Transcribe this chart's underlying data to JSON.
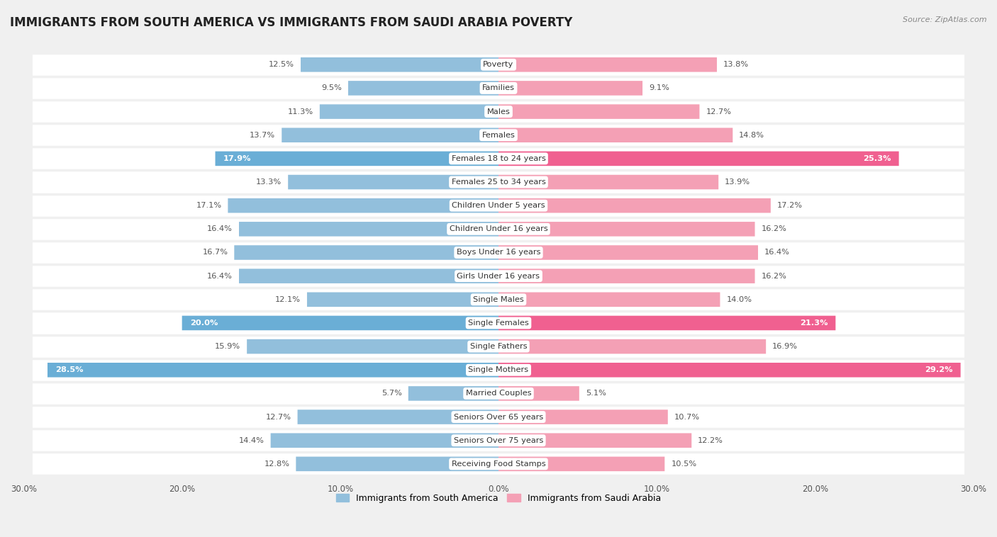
{
  "title": "IMMIGRANTS FROM SOUTH AMERICA VS IMMIGRANTS FROM SAUDI ARABIA POVERTY",
  "source": "Source: ZipAtlas.com",
  "categories": [
    "Poverty",
    "Families",
    "Males",
    "Females",
    "Females 18 to 24 years",
    "Females 25 to 34 years",
    "Children Under 5 years",
    "Children Under 16 years",
    "Boys Under 16 years",
    "Girls Under 16 years",
    "Single Males",
    "Single Females",
    "Single Fathers",
    "Single Mothers",
    "Married Couples",
    "Seniors Over 65 years",
    "Seniors Over 75 years",
    "Receiving Food Stamps"
  ],
  "south_america": [
    12.5,
    9.5,
    11.3,
    13.7,
    17.9,
    13.3,
    17.1,
    16.4,
    16.7,
    16.4,
    12.1,
    20.0,
    15.9,
    28.5,
    5.7,
    12.7,
    14.4,
    12.8
  ],
  "saudi_arabia": [
    13.8,
    9.1,
    12.7,
    14.8,
    25.3,
    13.9,
    17.2,
    16.2,
    16.4,
    16.2,
    14.0,
    21.3,
    16.9,
    29.2,
    5.1,
    10.7,
    12.2,
    10.5
  ],
  "color_south_america": "#92bfdc",
  "color_saudi_arabia": "#f4a0b5",
  "color_south_america_highlight": "#6aaed6",
  "color_saudi_arabia_highlight": "#f06090",
  "background_color": "#f0f0f0",
  "bar_background": "#ffffff",
  "row_bg_color": "#e8e8e8",
  "xlim": 30.0,
  "legend_label_south": "Immigrants from South America",
  "legend_label_saudi": "Immigrants from Saudi Arabia",
  "bar_height": 0.62,
  "highlight_rows": [
    4,
    11,
    13
  ],
  "title_fontsize": 12,
  "label_fontsize": 8.2,
  "value_fontsize": 8.2,
  "tick_fontsize": 8.5
}
